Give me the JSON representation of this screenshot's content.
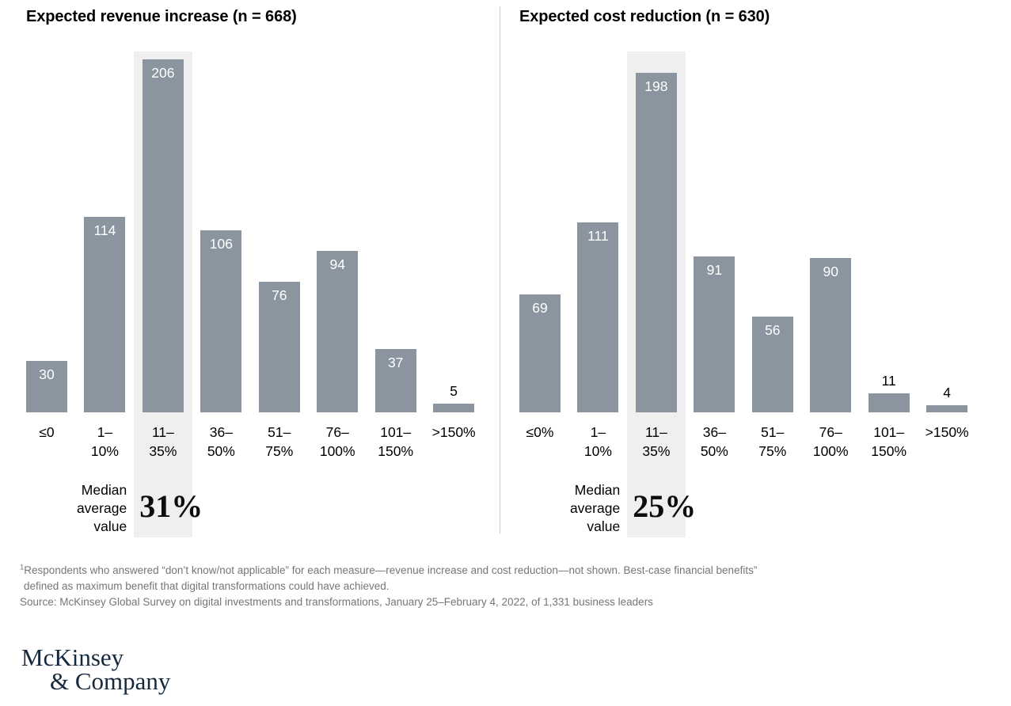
{
  "chart_data": [
    {
      "type": "bar",
      "title": "Expected revenue increase (n = 668)",
      "categories": [
        "≤0",
        "1–\n10%",
        "11–\n35%",
        "36–\n50%",
        "51–\n75%",
        "76–\n100%",
        "101–\n150%",
        ">150%"
      ],
      "values": [
        30,
        114,
        206,
        106,
        76,
        94,
        37,
        5
      ],
      "highlight_index": 2,
      "median_label": "Median\naverage\nvalue",
      "median_value": "31%",
      "ylim": [
        0,
        210
      ],
      "grid": false,
      "legend": "none",
      "bar_color": "#8A959F",
      "highlight_band_color": "#EFEFEF"
    },
    {
      "type": "bar",
      "title": "Expected cost reduction (n = 630)",
      "categories": [
        "≤0%",
        "1–\n10%",
        "11–\n35%",
        "36–\n50%",
        "51–\n75%",
        "76–\n100%",
        "101–\n150%",
        ">150%"
      ],
      "values": [
        69,
        111,
        198,
        91,
        56,
        90,
        11,
        4
      ],
      "highlight_index": 2,
      "median_label": "Median\naverage\nvalue",
      "median_value": "25%",
      "ylim": [
        0,
        210
      ],
      "grid": false,
      "legend": "none",
      "bar_color": "#8A959F",
      "highlight_band_color": "#EFEFEF"
    }
  ],
  "colors": {
    "bar": "#8A959F",
    "highlight_band": "#EFEFEF",
    "divider": "#CCCCCC",
    "footnote_gray": "#767676",
    "logo_navy": "#15293E"
  },
  "footnote": {
    "sup": "1",
    "line1": "Respondents who answered “don’t know/not applicable” for each measure—revenue increase and cost reduction—not shown. Best-case financial benefits”",
    "line2": "defined as maximum benefit that digital transformations could have achieved.",
    "line3": "Source: McKinsey Global Survey on digital investments and transformations, January 25–February 4, 2022, of 1,331 business leaders"
  },
  "logo": {
    "line1": "McKinsey",
    "line2": "& Company"
  }
}
